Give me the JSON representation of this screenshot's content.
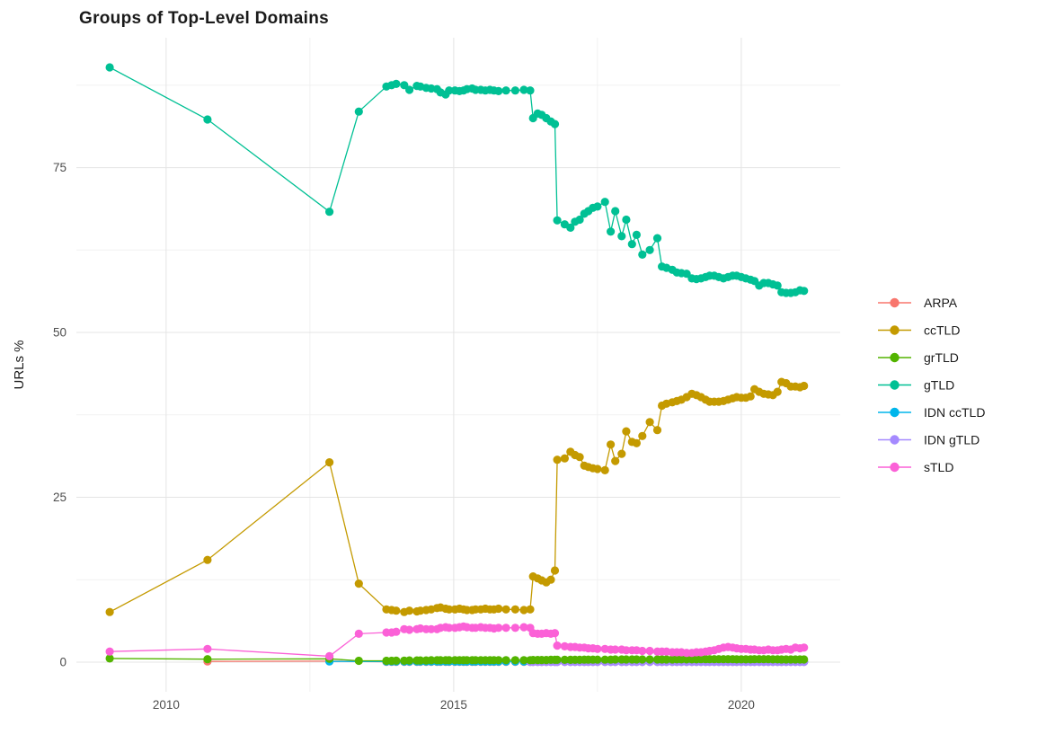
{
  "header": {
    "title": "Groups of Top-Level Domains"
  },
  "chart_data": {
    "type": "line",
    "title": "Groups of Top-Level Domains",
    "xlabel": "",
    "ylabel": "URLs %",
    "x_ticks": {
      "major": [
        2010,
        2015,
        2020
      ],
      "minor": [
        2012.5,
        2017.5
      ]
    },
    "y_ticks": {
      "major": [
        0,
        25,
        50,
        75
      ],
      "minor": [
        12.5,
        37.5,
        62.5,
        87.5
      ]
    },
    "xlim": [
      2008.44,
      2021.72
    ],
    "ylim": [
      -4.5,
      94.7
    ],
    "grid": "major+minor",
    "legend_position": "right",
    "background": "#ffffff",
    "draw_order": [
      "ARPA",
      "IDN ccTLD",
      "IDN gTLD",
      "grTLD",
      "ccTLD",
      "gTLD",
      "sTLD"
    ],
    "x_dense": [
      2013.83,
      2013.92,
      2014.0,
      2014.14,
      2014.23,
      2014.36,
      2014.42,
      2014.52,
      2014.61,
      2014.71,
      2014.77,
      2014.86,
      2014.92,
      2015.02,
      2015.1,
      2015.17,
      2015.23,
      2015.32,
      2015.38,
      2015.47,
      2015.55,
      2015.63,
      2015.7,
      2015.78,
      2015.91,
      2016.07,
      2016.22,
      2016.33,
      2016.38,
      2016.46,
      2016.53,
      2016.61,
      2016.69,
      2016.76,
      2016.8,
      2016.93,
      2017.03,
      2017.11,
      2017.19,
      2017.27,
      2017.34,
      2017.42,
      2017.5,
      2017.63,
      2017.73,
      2017.81,
      2017.92,
      2018.0,
      2018.1,
      2018.18,
      2018.28,
      2018.41,
      2018.54,
      2018.62,
      2018.7,
      2018.8,
      2018.88,
      2018.96,
      2019.05,
      2019.14,
      2019.22,
      2019.3,
      2019.38,
      2019.45,
      2019.53,
      2019.61,
      2019.69,
      2019.77,
      2019.85,
      2019.92,
      2020.0,
      2020.08,
      2020.16,
      2020.23,
      2020.31,
      2020.39,
      2020.47,
      2020.55,
      2020.63,
      2020.7,
      2020.78,
      2020.86,
      2020.94,
      2021.02,
      2021.09
    ],
    "series": [
      {
        "name": "ARPA",
        "color": "#F8766D",
        "sparse": [
          [
            2010.72,
            0.1
          ],
          [
            2012.84,
            0.15
          ]
        ],
        "y_dense": [
          0.05,
          0.05,
          0.05,
          0.05,
          0.05,
          0.05,
          0.05,
          0.05,
          0.05,
          0.05,
          0.05,
          0.05,
          0.05,
          0.05,
          0.05,
          0.05,
          0.05,
          0.05,
          0.05,
          0.05,
          0.05,
          0.05,
          0.05,
          0.05,
          0.05,
          0.05,
          0.05,
          0.05,
          0.05,
          0.05,
          0.05,
          0.05,
          0.05,
          0.05,
          0.05,
          0.05,
          0.05,
          0.05,
          0.05,
          0.05,
          0.05,
          0.05,
          0.05,
          0.05,
          0.05,
          0.05,
          0.05,
          0.05,
          0.05,
          0.05,
          0.05,
          0.05,
          0.05,
          0.05,
          0.05,
          0.05,
          0.05,
          0.05,
          0.05,
          0.05,
          0.05,
          0.05,
          0.05,
          0.05,
          0.05,
          0.05,
          0.05,
          0.05,
          0.05,
          0.05,
          0.05,
          0.05,
          0.05,
          0.05,
          0.05,
          0.05,
          0.05,
          0.05,
          0.05,
          0.05,
          0.05,
          0.05,
          0.05,
          0.05,
          0.05
        ]
      },
      {
        "name": "ccTLD",
        "color": "#C49A00",
        "sparse": [
          [
            2009.02,
            7.6
          ],
          [
            2010.72,
            15.5
          ],
          [
            2012.84,
            30.3
          ],
          [
            2013.35,
            11.9
          ]
        ],
        "y_dense": [
          8.0,
          7.9,
          7.8,
          7.6,
          7.8,
          7.7,
          7.8,
          7.9,
          8.0,
          8.2,
          8.3,
          8.1,
          8.0,
          8.0,
          8.1,
          8.0,
          7.9,
          7.9,
          8.0,
          8.0,
          8.1,
          8.0,
          8.0,
          8.1,
          8.0,
          8.0,
          7.9,
          8.0,
          13.0,
          12.7,
          12.4,
          12.1,
          12.5,
          13.9,
          30.7,
          30.9,
          31.9,
          31.4,
          31.1,
          29.8,
          29.6,
          29.4,
          29.3,
          29.1,
          33.0,
          30.5,
          31.6,
          35.0,
          33.4,
          33.2,
          34.3,
          36.4,
          35.2,
          38.9,
          39.2,
          39.4,
          39.6,
          39.8,
          40.2,
          40.7,
          40.5,
          40.2,
          39.8,
          39.5,
          39.5,
          39.5,
          39.6,
          39.8,
          40.0,
          40.2,
          40.1,
          40.1,
          40.3,
          41.4,
          41.0,
          40.7,
          40.6,
          40.5,
          41.0,
          42.5,
          42.3,
          41.8,
          41.8,
          41.7,
          41.9
        ]
      },
      {
        "name": "grTLD",
        "color": "#53B400",
        "sparse": [
          [
            2009.02,
            0.55
          ],
          [
            2010.72,
            0.45
          ],
          [
            2012.84,
            0.5
          ],
          [
            2013.35,
            0.2
          ]
        ],
        "y_dense": [
          0.2,
          0.2,
          0.22,
          0.22,
          0.25,
          0.25,
          0.25,
          0.25,
          0.28,
          0.28,
          0.28,
          0.28,
          0.28,
          0.3,
          0.3,
          0.3,
          0.3,
          0.3,
          0.3,
          0.3,
          0.3,
          0.3,
          0.3,
          0.3,
          0.3,
          0.3,
          0.3,
          0.3,
          0.32,
          0.32,
          0.32,
          0.32,
          0.35,
          0.35,
          0.35,
          0.35,
          0.35,
          0.35,
          0.35,
          0.38,
          0.38,
          0.38,
          0.38,
          0.38,
          0.38,
          0.4,
          0.4,
          0.4,
          0.4,
          0.4,
          0.4,
          0.4,
          0.4,
          0.4,
          0.4,
          0.4,
          0.42,
          0.42,
          0.42,
          0.42,
          0.42,
          0.45,
          0.45,
          0.45,
          0.45,
          0.45,
          0.45,
          0.45,
          0.45,
          0.42,
          0.42,
          0.42,
          0.42,
          0.45,
          0.45,
          0.45,
          0.45,
          0.42,
          0.42,
          0.4,
          0.4,
          0.4,
          0.4,
          0.4,
          0.4
        ]
      },
      {
        "name": "gTLD",
        "color": "#00C094",
        "sparse": [
          [
            2009.02,
            90.2
          ],
          [
            2010.72,
            82.3
          ],
          [
            2012.84,
            68.3
          ],
          [
            2013.35,
            83.5
          ]
        ],
        "y_dense": [
          87.3,
          87.5,
          87.7,
          87.5,
          86.8,
          87.4,
          87.3,
          87.1,
          87.0,
          86.9,
          86.4,
          86.1,
          86.7,
          86.7,
          86.6,
          86.7,
          86.9,
          87.0,
          86.8,
          86.8,
          86.7,
          86.8,
          86.7,
          86.6,
          86.7,
          86.7,
          86.8,
          86.7,
          82.5,
          83.2,
          83.0,
          82.5,
          82.0,
          81.6,
          67.0,
          66.4,
          65.9,
          66.8,
          67.1,
          68.0,
          68.4,
          68.9,
          69.1,
          69.8,
          65.3,
          68.4,
          64.6,
          67.1,
          63.4,
          64.8,
          61.8,
          62.5,
          64.3,
          60.0,
          59.8,
          59.5,
          59.1,
          59.0,
          58.9,
          58.2,
          58.1,
          58.2,
          58.4,
          58.6,
          58.6,
          58.4,
          58.2,
          58.4,
          58.6,
          58.6,
          58.4,
          58.2,
          58.0,
          57.8,
          57.1,
          57.5,
          57.5,
          57.3,
          57.1,
          56.1,
          56.0,
          56.0,
          56.1,
          56.4,
          56.3
        ]
      },
      {
        "name": "IDN ccTLD",
        "color": "#00B6EB",
        "sparse": [
          [
            2012.84,
            0.1
          ]
        ],
        "y_dense": [
          0.08,
          0.08,
          0.08,
          0.08,
          0.08,
          0.08,
          0.08,
          0.08,
          0.08,
          0.08,
          0.08,
          0.08,
          0.08,
          0.08,
          0.08,
          0.08,
          0.08,
          0.08,
          0.08,
          0.08,
          0.08,
          0.08,
          0.08,
          0.08,
          0.08,
          0.08,
          0.08,
          0.08,
          0.08,
          0.08,
          0.08,
          0.08,
          0.08,
          0.08,
          0.08,
          0.08,
          0.08,
          0.08,
          0.08,
          0.08,
          0.08,
          0.08,
          0.08,
          0.08,
          0.08,
          0.08,
          0.08,
          0.08,
          0.08,
          0.08,
          0.08,
          0.08,
          0.08,
          0.08,
          0.08,
          0.08,
          0.08,
          0.08,
          0.08,
          0.08,
          0.08,
          0.08,
          0.08,
          0.08,
          0.08,
          0.08,
          0.08,
          0.08,
          0.08,
          0.08,
          0.08,
          0.08,
          0.08,
          0.08,
          0.08,
          0.08,
          0.08,
          0.08,
          0.08,
          0.08,
          0.08,
          0.08,
          0.08,
          0.08,
          0.08
        ]
      },
      {
        "name": "IDN gTLD",
        "color": "#A58AFF",
        "sparse": [],
        "y_dense": [
          null,
          null,
          null,
          null,
          null,
          null,
          null,
          null,
          null,
          null,
          null,
          null,
          null,
          null,
          null,
          null,
          null,
          null,
          null,
          null,
          null,
          null,
          null,
          null,
          null,
          null,
          null,
          0.03,
          0.03,
          0.03,
          0.03,
          0.03,
          0.03,
          0.03,
          0.03,
          0.03,
          0.03,
          0.03,
          0.03,
          0.03,
          0.03,
          0.03,
          0.03,
          0.03,
          0.03,
          0.03,
          0.03,
          0.03,
          0.03,
          0.03,
          0.03,
          0.03,
          0.03,
          0.03,
          0.03,
          0.03,
          0.03,
          0.03,
          0.03,
          0.03,
          0.03,
          0.03,
          0.03,
          0.03,
          0.03,
          0.03,
          0.03,
          0.03,
          0.03,
          0.03,
          0.03,
          0.03,
          0.03,
          0.03,
          0.03,
          0.03,
          0.03,
          0.03,
          0.03,
          0.03,
          0.03,
          0.03,
          0.03,
          0.03,
          0.03
        ]
      },
      {
        "name": "sTLD",
        "color": "#FB61D7",
        "sparse": [
          [
            2009.02,
            1.6
          ],
          [
            2010.72,
            2.0
          ],
          [
            2012.84,
            0.9
          ],
          [
            2013.35,
            4.3
          ]
        ],
        "y_dense": [
          4.5,
          4.5,
          4.6,
          5.0,
          4.9,
          5.0,
          5.1,
          5.0,
          5.0,
          5.0,
          5.2,
          5.3,
          5.2,
          5.2,
          5.3,
          5.4,
          5.3,
          5.2,
          5.2,
          5.3,
          5.2,
          5.2,
          5.1,
          5.2,
          5.2,
          5.2,
          5.3,
          5.2,
          4.4,
          4.3,
          4.3,
          4.4,
          4.3,
          4.4,
          2.5,
          2.4,
          2.3,
          2.3,
          2.2,
          2.2,
          2.1,
          2.1,
          2.0,
          2.0,
          1.9,
          1.9,
          1.9,
          1.8,
          1.8,
          1.8,
          1.7,
          1.7,
          1.6,
          1.6,
          1.6,
          1.5,
          1.5,
          1.5,
          1.4,
          1.4,
          1.5,
          1.5,
          1.6,
          1.7,
          1.8,
          2.0,
          2.2,
          2.3,
          2.2,
          2.1,
          2.0,
          2.0,
          1.9,
          1.9,
          1.8,
          1.8,
          1.9,
          1.8,
          1.8,
          1.9,
          2.0,
          1.9,
          2.2,
          2.1,
          2.2
        ]
      }
    ]
  }
}
